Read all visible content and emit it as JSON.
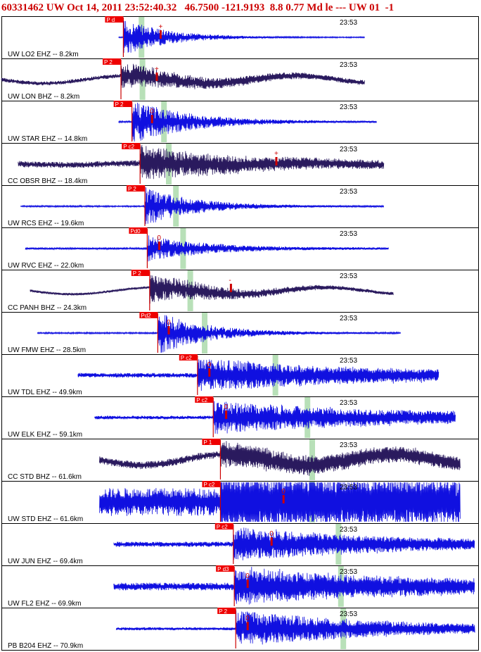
{
  "header": {
    "event_id": "60331462",
    "network": "UW",
    "datetime": "Oct 14, 2011 23:52:40.32",
    "latitude": "46.7500",
    "longitude": "-121.9193",
    "depth": "8.8",
    "magnitude": "0.77",
    "mag_type": "Md",
    "extra": "le --- UW 01  -1"
  },
  "colors": {
    "bhz_trace": "#2a1a5e",
    "ehz_trace": "#1010e0",
    "pick_box": "#ee0000",
    "pick_line": "#cc0000",
    "window_band": "#b8e0b8",
    "grid": "#000000"
  },
  "chart_data": {
    "type": "line",
    "title": "60331462 UW Oct 14, 2011 23:52:40.32  46.7500 -121.9193  8.8 0.77 Md le --- UW 01  -1",
    "time_tick_label": "23:53",
    "traces": [
      {
        "label": "UW LO2 EHZ -- 8.2km",
        "kind": "EHZ",
        "pick": "P d",
        "amp": "+",
        "start": 0.245,
        "end": 0.76,
        "p": 0.255,
        "band": 0.293,
        "ampx": 0.333,
        "noise": 0.02,
        "burst": 0.85,
        "decay": 0.09,
        "low": 0,
        "noisy": 0
      },
      {
        "label": "UW LON BHZ -- 8.2km",
        "kind": "BHZ",
        "pick": "P 2",
        "amp": "+",
        "start": 0.0,
        "end": 0.76,
        "p": 0.25,
        "band": 0.295,
        "ampx": 0.325,
        "noise": 0.08,
        "burst": 0.55,
        "decay": 0.18,
        "low": 0.45,
        "noisy": 0
      },
      {
        "label": "UW STAR EHZ -- 14.8km",
        "kind": "EHZ",
        "pick": "P 2",
        "amp": "0",
        "start": 0.245,
        "end": 0.785,
        "p": 0.273,
        "band": 0.34,
        "ampx": 0.315,
        "noise": 0.03,
        "burst": 1.0,
        "decay": 0.12,
        "low": 0,
        "noisy": 0
      },
      {
        "label": "CC OBSR BHZ -- 18.4km",
        "kind": "BHZ",
        "pick": "P c2",
        "amp": "+",
        "start": 0.035,
        "end": 0.8,
        "p": 0.29,
        "band": 0.35,
        "ampx": 0.575,
        "noise": 0.12,
        "burst": 0.75,
        "decay": 0.22,
        "low": 0.1,
        "noisy": 0
      },
      {
        "label": "UW RCS EHZ -- 19.6km",
        "kind": "EHZ",
        "pick": "P 2",
        "amp": "",
        "start": 0.04,
        "end": 0.8,
        "p": 0.3,
        "band": 0.365,
        "ampx": 0.477,
        "noise": 0.03,
        "burst": 0.9,
        "decay": 0.1,
        "low": 0,
        "noisy": 0
      },
      {
        "label": "UW RVC EHZ -- 22.0km",
        "kind": "EHZ",
        "pick": "Pd0",
        "amp": "0",
        "start": 0.05,
        "end": 0.81,
        "p": 0.305,
        "band": 0.38,
        "ampx": 0.33,
        "noise": 0.04,
        "burst": 0.6,
        "decay": 0.12,
        "low": 0,
        "noisy": 0
      },
      {
        "label": "CC PANH BHZ -- 24.3km",
        "kind": "BHZ",
        "pick": "P 2",
        "amp": "-",
        "start": 0.06,
        "end": 0.82,
        "p": 0.31,
        "band": 0.395,
        "ampx": 0.48,
        "noise": 0.05,
        "burst": 0.7,
        "decay": 0.15,
        "low": 0.4,
        "noisy": 0
      },
      {
        "label": "UW FMW EHZ -- 28.5km",
        "kind": "EHZ",
        "pick": "Pd2",
        "amp": "0",
        "start": 0.075,
        "end": 0.835,
        "p": 0.327,
        "band": 0.425,
        "ampx": 0.35,
        "noise": 0.03,
        "burst": 1.0,
        "decay": 0.1,
        "low": 0,
        "noisy": 0
      },
      {
        "label": "UW TDL EHZ -- 49.9km",
        "kind": "EHZ",
        "pick": "P c2",
        "amp": "0",
        "start": 0.16,
        "end": 0.915,
        "p": 0.41,
        "band": 0.573,
        "ampx": 0.435,
        "noise": 0.09,
        "burst": 0.7,
        "decay": 0.35,
        "low": 0,
        "noisy": 1
      },
      {
        "label": "UW ELK EHZ -- 59.1km",
        "kind": "EHZ",
        "pick": "P c2",
        "amp": "0",
        "start": 0.195,
        "end": 0.95,
        "p": 0.443,
        "band": 0.64,
        "ampx": 0.47,
        "noise": 0.07,
        "burst": 0.7,
        "decay": 0.4,
        "low": 0,
        "noisy": 1
      },
      {
        "label": "CC STD BHZ -- 61.6km",
        "kind": "BHZ",
        "pick": "P 1",
        "amp": "",
        "start": 0.205,
        "end": 0.96,
        "p": 0.458,
        "band": 0.65,
        "ampx": 0.0,
        "noise": 0.15,
        "burst": 0.4,
        "decay": 0.4,
        "low": 0.65,
        "noisy": 1
      },
      {
        "label": "UW STD EHZ -- 61.6km",
        "kind": "EHZ",
        "pick": "P c2",
        "amp": "0",
        "start": 0.205,
        "end": 0.96,
        "p": 0.458,
        "band": 0.65,
        "ampx": 0.59,
        "noise": 0.55,
        "burst": 0.6,
        "decay": 0.6,
        "low": 0,
        "noisy": 1
      },
      {
        "label": "UW JUN EHZ -- 69.4km",
        "kind": "EHZ",
        "pick": "P c2",
        "amp": "0",
        "start": 0.235,
        "end": 0.99,
        "p": 0.485,
        "band": 0.705,
        "ampx": 0.565,
        "noise": 0.1,
        "burst": 0.7,
        "decay": 0.3,
        "low": 0,
        "noisy": 1
      },
      {
        "label": "UW FL2 EHZ -- 69.9km",
        "kind": "EHZ",
        "pick": "P d3",
        "amp": "0",
        "start": 0.235,
        "end": 0.99,
        "p": 0.487,
        "band": 0.71,
        "ampx": 0.515,
        "noise": 0.15,
        "burst": 0.7,
        "decay": 0.35,
        "low": 0,
        "noisy": 1
      },
      {
        "label": "PB B204 EHZ -- 70.9km",
        "kind": "EHZ",
        "pick": "P 2",
        "amp": "0",
        "start": 0.24,
        "end": 0.99,
        "p": 0.49,
        "band": 0.715,
        "ampx": 0.515,
        "noise": 0.06,
        "burst": 0.8,
        "decay": 0.3,
        "low": 0,
        "noisy": 1
      }
    ]
  }
}
